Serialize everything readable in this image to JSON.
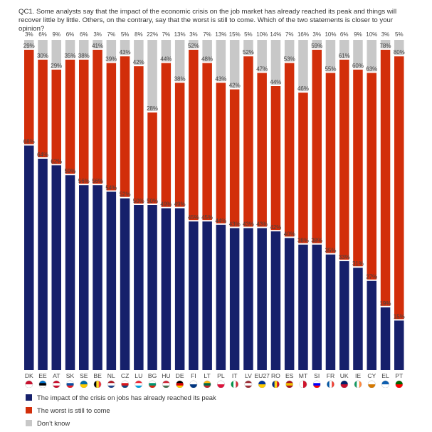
{
  "question": "QC1. Some analysts say that the impact of the economic crisis on the job market has already reached its peak and things will recover little by little. Others, on the contrary, say that the worst is still to come. Which of the two statements is closer to your opinion?",
  "chart_data": {
    "type": "bar",
    "stacked": true,
    "title": "QC1. Some analysts say that the impact of the economic crisis on the job market has already reached its peak and things will recover little by little. Others, on the contrary, say that the worst is still to come. Which of the two statements is closer to your opinion?",
    "xlabel": "",
    "ylabel": "",
    "ylim": [
      0,
      100
    ],
    "grid": false,
    "legend_position": "bottom-left",
    "categories": [
      "DK",
      "EE",
      "AT",
      "SK",
      "SE",
      "BE",
      "NL",
      "CZ",
      "LU",
      "BG",
      "HU",
      "DE",
      "FI",
      "LT",
      "PL",
      "IT",
      "LV",
      "EU27",
      "RO",
      "ES",
      "MT",
      "SI",
      "FR",
      "UK",
      "IE",
      "CY",
      "EL",
      "PT"
    ],
    "series": [
      {
        "name": "The impact of the crisis on jobs has already reached its peak",
        "color": "#16206b",
        "values": [
          68,
          64,
          62,
          59,
          56,
          56,
          54,
          52,
          50,
          50,
          49,
          49,
          45,
          45,
          44,
          43,
          43,
          43,
          42,
          40,
          38,
          38,
          35,
          33,
          31,
          27,
          19,
          15
        ]
      },
      {
        "name": "The worst is still to come",
        "color": "#d22e0a",
        "values": [
          29,
          30,
          29,
          35,
          38,
          41,
          39,
          43,
          42,
          28,
          44,
          38,
          52,
          48,
          43,
          42,
          52,
          47,
          44,
          53,
          46,
          59,
          55,
          61,
          60,
          63,
          78,
          80
        ]
      },
      {
        "name": "Don't know",
        "color": "#c8c8c8",
        "values": [
          3,
          6,
          9,
          6,
          6,
          3,
          7,
          5,
          8,
          22,
          7,
          13,
          3,
          7,
          13,
          15,
          5,
          10,
          14,
          7,
          16,
          3,
          10,
          6,
          9,
          10,
          3,
          5
        ]
      }
    ],
    "value_suffix": "%"
  },
  "legend": [
    {
      "label": "The impact of the crisis on jobs has already reached its peak",
      "color": "#16206b"
    },
    {
      "label": "The worst is still to come",
      "color": "#d22e0a"
    },
    {
      "label": "Don't know",
      "color": "#c8c8c8"
    }
  ],
  "flags": [
    "denmark-flag-icon",
    "estonia-flag-icon",
    "austria-flag-icon",
    "slovakia-flag-icon",
    "sweden-flag-icon",
    "belgium-flag-icon",
    "netherlands-flag-icon",
    "czech-flag-icon",
    "luxembourg-flag-icon",
    "bulgaria-flag-icon",
    "hungary-flag-icon",
    "germany-flag-icon",
    "finland-flag-icon",
    "lithuania-flag-icon",
    "poland-flag-icon",
    "italy-flag-icon",
    "latvia-flag-icon",
    "eu-flag-icon",
    "romania-flag-icon",
    "spain-flag-icon",
    "malta-flag-icon",
    "slovenia-flag-icon",
    "france-flag-icon",
    "uk-flag-icon",
    "ireland-flag-icon",
    "cyprus-flag-icon",
    "greece-flag-icon",
    "portugal-flag-icon"
  ]
}
